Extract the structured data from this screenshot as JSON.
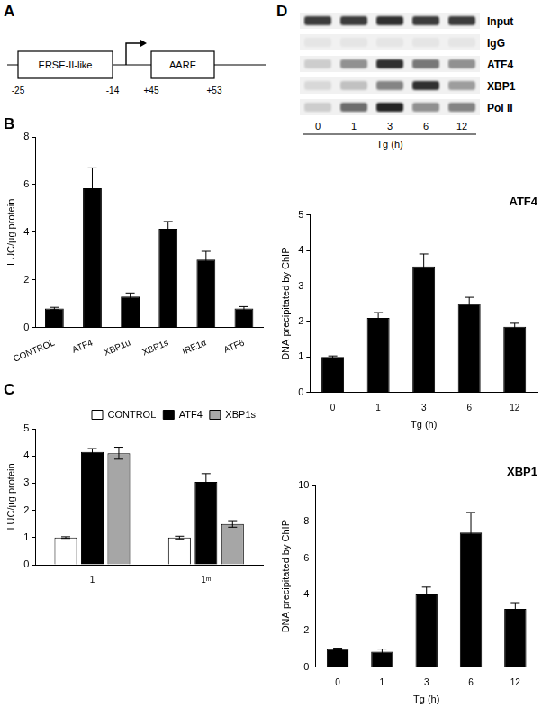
{
  "diagram": {
    "panel": "A",
    "elements": [
      {
        "label": "ERSE-II-like",
        "positions": [
          "-25",
          "-14"
        ]
      },
      {
        "label": "AARE",
        "positions": [
          "+45",
          "+53"
        ]
      }
    ]
  },
  "blot": {
    "panel": "D",
    "rows": [
      "Input",
      "IgG",
      "ATF4",
      "XBP1",
      "Pol II"
    ],
    "lanes": [
      "0",
      "1",
      "3",
      "6",
      "12"
    ],
    "xlabel": "Tg (h)",
    "band_intensity": [
      [
        0.75,
        0.75,
        0.8,
        0.75,
        0.75
      ],
      [
        0.05,
        0.05,
        0.05,
        0.05,
        0.05
      ],
      [
        0.15,
        0.4,
        0.8,
        0.5,
        0.4
      ],
      [
        0.1,
        0.2,
        0.45,
        0.8,
        0.35
      ],
      [
        0.15,
        0.55,
        0.85,
        0.4,
        0.45
      ]
    ]
  },
  "chart_data": [
    {
      "type": "bar",
      "annotations": [
        "B"
      ],
      "ylabel": "LUC/μg protein",
      "categories": [
        "CONTROL",
        "ATF4",
        "XBP1u",
        "XBP1s",
        "IRE1α",
        "ATF6"
      ],
      "values": [
        0.8,
        5.85,
        1.3,
        4.15,
        2.85,
        0.8
      ],
      "errors": [
        0.05,
        0.85,
        0.15,
        0.3,
        0.35,
        0.08
      ],
      "color": "#000000",
      "ylim": [
        0,
        8
      ],
      "yticks": [
        0,
        2,
        4,
        6,
        8
      ],
      "grid": false
    },
    {
      "type": "bar",
      "annotations": [
        "C"
      ],
      "ylabel": "LUC/μg protein",
      "categories": [
        "1",
        "1ᵐ"
      ],
      "series": [
        {
          "name": "CONTROL",
          "color": "#ffffff",
          "values": [
            1.0,
            1.0
          ],
          "errors": [
            0.03,
            0.05
          ]
        },
        {
          "name": "ATF4",
          "color": "#000000",
          "values": [
            4.15,
            3.05
          ],
          "errors": [
            0.12,
            0.3
          ]
        },
        {
          "name": "XBP1s",
          "color": "#a6a6a6",
          "values": [
            4.1,
            1.5
          ],
          "errors": [
            0.22,
            0.12
          ]
        }
      ],
      "ylim": [
        0,
        5
      ],
      "yticks": [
        0,
        1,
        2,
        3,
        4,
        5
      ],
      "legend": "upper right",
      "grid": false
    },
    {
      "type": "bar",
      "title": "ATF4",
      "ylabel": "DNA precipitated by ChIP",
      "xlabel": "Tg (h)",
      "categories": [
        "0",
        "1",
        "3",
        "6",
        "12"
      ],
      "values": [
        1.0,
        2.1,
        3.55,
        2.5,
        1.85
      ],
      "errors": [
        0.03,
        0.15,
        0.35,
        0.18,
        0.1
      ],
      "color": "#000000",
      "ylim": [
        0,
        5
      ],
      "yticks": [
        0,
        1,
        2,
        3,
        4,
        5
      ],
      "grid": false
    },
    {
      "type": "bar",
      "title": "XBP1",
      "ylabel": "DNA precipitated by ChIP",
      "xlabel": "Tg (h)",
      "categories": [
        "0",
        "1",
        "3",
        "6",
        "12"
      ],
      "values": [
        1.0,
        0.85,
        4.0,
        7.4,
        3.2
      ],
      "errors": [
        0.05,
        0.15,
        0.4,
        1.1,
        0.35
      ],
      "color": "#000000",
      "ylim": [
        0,
        10
      ],
      "yticks": [
        0,
        2,
        4,
        6,
        8,
        10
      ],
      "grid": false
    }
  ]
}
